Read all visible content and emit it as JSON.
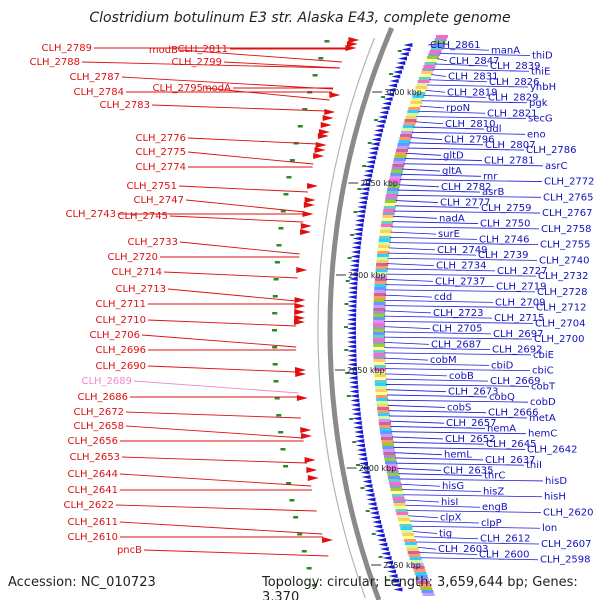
{
  "title": "Clostridium botulinum E3 str. Alaska E43, complete genome",
  "accession": "Accession: NC_010723",
  "summary": "Topology: circular; Length: 3,659,644 bp; Genes: 3,370",
  "ticks": [
    {
      "label": "3000 kbp",
      "pos": 3000
    },
    {
      "label": "2950 kbp",
      "pos": 2950
    },
    {
      "label": "2900 kbp",
      "pos": 2900
    },
    {
      "label": "2850 kbp",
      "pos": 2850
    },
    {
      "label": "2800 kbp",
      "pos": 2800
    },
    {
      "label": "2750 kbp",
      "pos": 2750
    }
  ],
  "left_labels": [
    "CLH_2789",
    "CLH_2788",
    "CLH_2787",
    "CLH_2784",
    "CLH_2783",
    "modB",
    "CLH_2811",
    "CLH_2799",
    "CLH_2795",
    "modA",
    "CLH_2776",
    "CLH_2775",
    "CLH_2774",
    "CLH_2751",
    "CLH_2747",
    "CLH_2743",
    "CLH_2745",
    "CLH_2733",
    "CLH_2720",
    "CLH_2714",
    "CLH_2713",
    "CLH_2711",
    "CLH_2710",
    "CLH_2706",
    "CLH_2696",
    "CLH_2690",
    "CLH_2689",
    "CLH_2686",
    "CLH_2672",
    "CLH_2658",
    "CLH_2656",
    "CLH_2653",
    "CLH_2644",
    "CLH_2641",
    "CLH_2622",
    "CLH_2611",
    "CLH_2610",
    "pncB"
  ],
  "right_labels": [
    "CLH_2861",
    "manA",
    "thiD",
    "CLH_2847",
    "CLH_2839",
    "thiE",
    "CLH_2831",
    "CLH_2826",
    "yhbH",
    "CLH_2819",
    "CLH_2829",
    "pgk",
    "rpoN",
    "CLH_2821",
    "secG",
    "CLH_2810",
    "ddl",
    "eno",
    "CLH_2796",
    "CLH_2807",
    "CLH_2786",
    "gltD",
    "CLH_2781",
    "asrC",
    "gltA",
    "rnr",
    "CLH_2772",
    "CLH_2782",
    "asrB",
    "CLH_2765",
    "CLH_2777",
    "CLH_2759",
    "CLH_2767",
    "nadA",
    "CLH_2750",
    "CLH_2758",
    "surE",
    "CLH_2746",
    "CLH_2755",
    "CLH_2749",
    "CLH_2739",
    "CLH_2740",
    "CLH_2734",
    "CLH_2727",
    "CLH_2732",
    "CLH_2737",
    "CLH_2719",
    "CLH_2728",
    "cdd",
    "CLH_2709",
    "CLH_2712",
    "CLH_2723",
    "CLH_2715",
    "CLH_2704",
    "CLH_2705",
    "CLH_2697",
    "CLH_2700",
    "CLH_2687",
    "CLH_2692",
    "cbiE",
    "cobM",
    "cbiD",
    "cbiC",
    "cobB",
    "CLH_2669",
    "cobT",
    "CLH_2673",
    "cobQ",
    "cobD",
    "cobS",
    "CLH_2666",
    "metA",
    "CLH_2657",
    "hemA",
    "hemC",
    "CLH_2652",
    "CLH_2645",
    "CLH_2642",
    "hemL",
    "CLH_2637",
    "thiI",
    "CLH_2635",
    "thrC",
    "hisD",
    "hisG",
    "hisZ",
    "hisH",
    "hisI",
    "engB",
    "CLH_2620",
    "clpX",
    "clpP",
    "lon",
    "tig",
    "CLH_2612",
    "CLH_2607",
    "CLH_2603",
    "CLH_2600",
    "CLH_2598"
  ],
  "colors": {
    "forward": "#e01010",
    "reverse": "#1a1ad6",
    "backbone": "#8a8a8a",
    "gc_positive": "#2a8a2a",
    "label_red": "#dd1111",
    "label_pink": "#f08acb",
    "label_blue": "#1111bb"
  }
}
